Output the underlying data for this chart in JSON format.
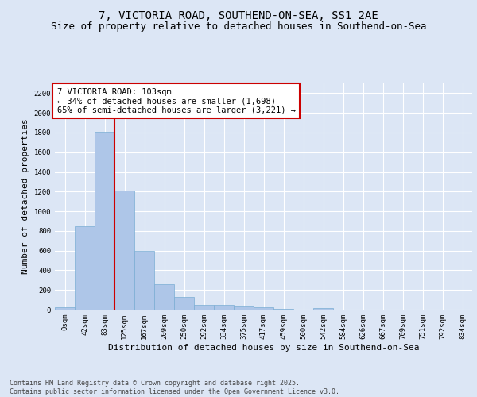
{
  "title_line1": "7, VICTORIA ROAD, SOUTHEND-ON-SEA, SS1 2AE",
  "title_line2": "Size of property relative to detached houses in Southend-on-Sea",
  "xlabel": "Distribution of detached houses by size in Southend-on-Sea",
  "ylabel": "Number of detached properties",
  "categories": [
    "0sqm",
    "42sqm",
    "83sqm",
    "125sqm",
    "167sqm",
    "209sqm",
    "250sqm",
    "292sqm",
    "334sqm",
    "375sqm",
    "417sqm",
    "459sqm",
    "500sqm",
    "542sqm",
    "584sqm",
    "626sqm",
    "667sqm",
    "709sqm",
    "751sqm",
    "792sqm",
    "834sqm"
  ],
  "values": [
    25,
    845,
    1810,
    1210,
    600,
    255,
    130,
    52,
    45,
    32,
    22,
    10,
    0,
    15,
    0,
    0,
    0,
    0,
    0,
    0,
    0
  ],
  "bar_color": "#aec6e8",
  "bar_edge_color": "#7aadd4",
  "vline_x_idx": 2,
  "vline_color": "#cc0000",
  "annotation_text": "7 VICTORIA ROAD: 103sqm\n← 34% of detached houses are smaller (1,698)\n65% of semi-detached houses are larger (3,221) →",
  "annotation_box_color": "#ffffff",
  "annotation_box_edge_color": "#cc0000",
  "ylim": [
    0,
    2300
  ],
  "yticks": [
    0,
    200,
    400,
    600,
    800,
    1000,
    1200,
    1400,
    1600,
    1800,
    2000,
    2200
  ],
  "background_color": "#dce6f5",
  "grid_color": "#ffffff",
  "footer_text": "Contains HM Land Registry data © Crown copyright and database right 2025.\nContains public sector information licensed under the Open Government Licence v3.0.",
  "title_fontsize": 10,
  "subtitle_fontsize": 9,
  "axis_label_fontsize": 8,
  "tick_fontsize": 6.5,
  "annotation_fontsize": 7.5,
  "footer_fontsize": 6
}
